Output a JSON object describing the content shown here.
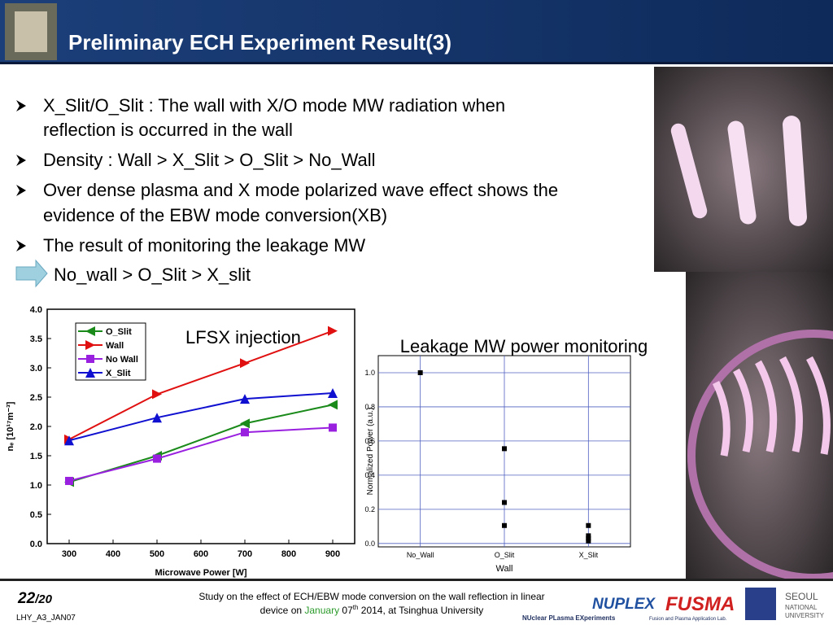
{
  "header": {
    "title": "Preliminary ECH Experiment Result(3)"
  },
  "bullets": [
    "X_Slit/O_Slit : The wall with X/O mode MW radiation when",
    "reflection is occurred in the wall",
    "Density : Wall > X_Slit > O_Slit > No_Wall",
    "Over dense plasma and X mode polarized wave effect shows the",
    "evidence of the EBW mode conversion(XB)",
    "The result of monitoring the leakage MW"
  ],
  "conclusion": "No_wall > O_Slit > X_slit",
  "chart_data": [
    {
      "type": "line",
      "annotation": "LFSX injection",
      "xlabel": "Microwave Power [W]",
      "ylabel": "nₑ [10¹⁷m⁻³]",
      "x": [
        300,
        500,
        700,
        900
      ],
      "xlim": [
        250,
        950
      ],
      "xticks": [
        300,
        400,
        500,
        600,
        700,
        800,
        900
      ],
      "ylim": [
        0,
        4
      ],
      "yticks": [
        {
          "value": 0,
          "label": "0.0"
        },
        0.5,
        {
          "value": 1,
          "label": "1.0"
        },
        1.5,
        {
          "value": 2,
          "label": "2.0"
        },
        2.5,
        {
          "value": 3,
          "label": "3.0"
        },
        3.5,
        {
          "value": 4,
          "label": "4.0"
        }
      ],
      "series": [
        {
          "name": "O_Slit",
          "color": "#1a8a1a",
          "marker": "triangle-left",
          "values": [
            1.05,
            1.5,
            2.05,
            2.37
          ]
        },
        {
          "name": "Wall",
          "color": "#e01010",
          "marker": "triangle-right",
          "values": [
            1.78,
            2.55,
            3.08,
            3.63
          ]
        },
        {
          "name": "No Wall",
          "color": "#9a20e0",
          "marker": "square",
          "values": [
            1.07,
            1.45,
            1.9,
            1.98
          ]
        },
        {
          "name": "X_Slit",
          "color": "#1010d0",
          "marker": "triangle-up",
          "values": [
            1.76,
            2.15,
            2.47,
            2.57
          ]
        }
      ]
    },
    {
      "type": "scatter",
      "title": "Leakage MW power monitoring",
      "xlabel": "Wall",
      "ylabel": "Normalized Power (a.u.)",
      "categories": [
        "No_Wall",
        "O_Slit",
        "X_Slit"
      ],
      "x": [
        "No_Wall",
        "O_Slit",
        "O_Slit",
        "O_Slit",
        "X_Slit",
        "X_Slit",
        "X_Slit",
        "X_Slit"
      ],
      "values": [
        1.0,
        0.555,
        0.24,
        0.105,
        0.105,
        0.045,
        0.03,
        0.015
      ],
      "color": "#000000",
      "grid": true,
      "ylim": [
        -0.02,
        1.1
      ],
      "yticks": [
        {
          "value": 0,
          "label": "0.0"
        },
        0.2,
        0.4,
        0.6,
        0.8,
        {
          "value": 1,
          "label": "1.0"
        }
      ]
    }
  ],
  "footer": {
    "page": "22",
    "total": "/20",
    "code": "LHY_A3_JAN07",
    "study": [
      "Study on the effect of ECH/EBW mode conversion on the wall reflection in linear",
      "device on ",
      "January",
      " 07",
      "th",
      " 2014, at Tsinghua University"
    ],
    "logos": [
      "NUPLEX",
      "FUSMA",
      "NUclear PLasma EXperiments",
      "Fusion and Plasma Application Lab.",
      "SEOUL",
      "NATIONAL",
      "UNIVERSITY"
    ]
  }
}
